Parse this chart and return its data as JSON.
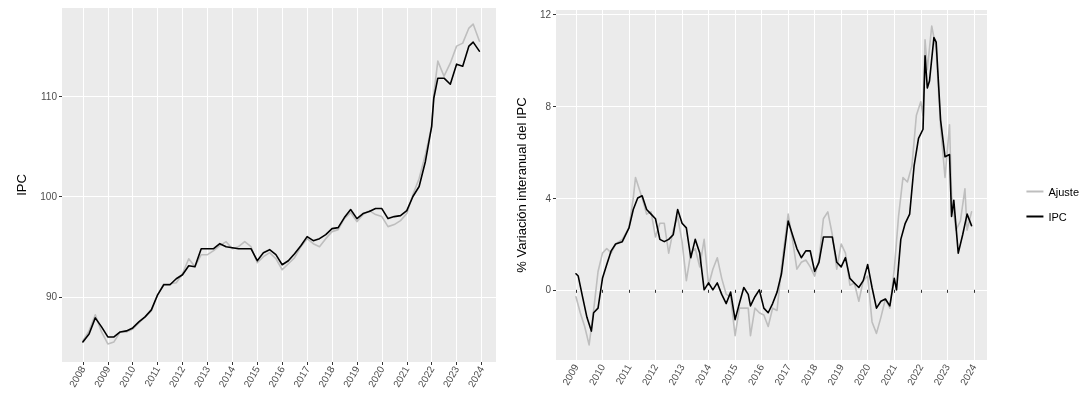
{
  "chart_data": [
    {
      "type": "line",
      "ylabel": "IPC",
      "xlim": [
        "2007-03",
        "2024-08"
      ],
      "ylim": [
        83.5,
        118.8
      ],
      "xticks": [
        "2008",
        "2009",
        "2010",
        "2011",
        "2012",
        "2013",
        "2014",
        "2015",
        "2016",
        "2017",
        "2018",
        "2019",
        "2020",
        "2021",
        "2022",
        "2023",
        "2024"
      ],
      "yticks": [
        90,
        100,
        110
      ],
      "grid": true,
      "marker": "none",
      "line_style": "solid",
      "series": [
        {
          "color": "#bebebe",
          "x": [
            "2008-01",
            "2008-04",
            "2008-07",
            "2008-10",
            "2009-01",
            "2009-04",
            "2009-07",
            "2009-10",
            "2010-01",
            "2010-04",
            "2010-07",
            "2010-10",
            "2011-01",
            "2011-04",
            "2011-07",
            "2011-10",
            "2012-01",
            "2012-04",
            "2012-07",
            "2012-10",
            "2013-01",
            "2013-04",
            "2013-07",
            "2013-10",
            "2014-01",
            "2014-04",
            "2014-07",
            "2014-10",
            "2015-01",
            "2015-04",
            "2015-07",
            "2015-10",
            "2016-01",
            "2016-04",
            "2016-07",
            "2016-10",
            "2017-01",
            "2017-04",
            "2017-07",
            "2017-10",
            "2018-01",
            "2018-04",
            "2018-07",
            "2018-10",
            "2019-01",
            "2019-04",
            "2019-07",
            "2019-10",
            "2020-01",
            "2020-04",
            "2020-07",
            "2020-10",
            "2021-01",
            "2021-04",
            "2021-07",
            "2021-10",
            "2022-01",
            "2022-02",
            "2022-04",
            "2022-07",
            "2022-10",
            "2023-01",
            "2023-04",
            "2023-07",
            "2023-09",
            "2023-12"
          ],
          "values": [
            85.6,
            86.6,
            88.2,
            86.5,
            85.3,
            85.5,
            86.5,
            86.5,
            86.8,
            87.4,
            88.0,
            88.6,
            90.2,
            91.3,
            91.3,
            91.4,
            92.3,
            93.8,
            93.0,
            94.2,
            94.2,
            94.6,
            95.1,
            95.5,
            94.8,
            95.0,
            95.5,
            95.0,
            93.4,
            94.0,
            94.4,
            93.8,
            92.7,
            93.3,
            93.9,
            95.0,
            95.8,
            95.3,
            95.0,
            95.8,
            96.5,
            96.7,
            97.8,
            98.4,
            97.5,
            98.2,
            98.6,
            98.2,
            98.0,
            97.0,
            97.2,
            97.6,
            98.3,
            100.2,
            101.8,
            104.2,
            107.0,
            110.2,
            113.5,
            112.0,
            113.3,
            115.0,
            115.3,
            116.8,
            117.2,
            115.5
          ]
        },
        {
          "color": "#000000",
          "x": [
            "2008-01",
            "2008-04",
            "2008-07",
            "2008-10",
            "2009-01",
            "2009-04",
            "2009-07",
            "2009-10",
            "2010-01",
            "2010-04",
            "2010-07",
            "2010-10",
            "2011-01",
            "2011-04",
            "2011-07",
            "2011-10",
            "2012-01",
            "2012-04",
            "2012-07",
            "2012-10",
            "2013-01",
            "2013-04",
            "2013-07",
            "2013-10",
            "2014-01",
            "2014-04",
            "2014-07",
            "2014-10",
            "2015-01",
            "2015-04",
            "2015-07",
            "2015-10",
            "2016-01",
            "2016-04",
            "2016-07",
            "2016-10",
            "2017-01",
            "2017-04",
            "2017-07",
            "2017-10",
            "2018-01",
            "2018-04",
            "2018-07",
            "2018-10",
            "2019-01",
            "2019-04",
            "2019-07",
            "2019-10",
            "2020-01",
            "2020-04",
            "2020-07",
            "2020-10",
            "2021-01",
            "2021-04",
            "2021-07",
            "2021-10",
            "2022-01",
            "2022-02",
            "2022-04",
            "2022-07",
            "2022-10",
            "2023-01",
            "2023-04",
            "2023-07",
            "2023-09",
            "2023-12"
          ],
          "values": [
            85.5,
            86.3,
            87.9,
            87.0,
            86.0,
            86.0,
            86.5,
            86.6,
            86.9,
            87.5,
            88.0,
            88.7,
            90.2,
            91.2,
            91.2,
            91.8,
            92.2,
            93.1,
            93.0,
            94.8,
            94.8,
            94.8,
            95.3,
            95.0,
            94.9,
            94.8,
            94.8,
            94.8,
            93.6,
            94.4,
            94.7,
            94.2,
            93.2,
            93.6,
            94.3,
            95.1,
            96.0,
            95.6,
            95.8,
            96.2,
            96.8,
            96.9,
            97.9,
            98.7,
            97.8,
            98.3,
            98.5,
            98.8,
            98.8,
            97.8,
            98.0,
            98.1,
            98.6,
            100.0,
            101.0,
            103.5,
            107.0,
            109.8,
            111.8,
            111.8,
            111.2,
            113.2,
            113.0,
            115.0,
            115.4,
            114.5
          ]
        }
      ]
    },
    {
      "type": "line",
      "ylabel": "% Variación interanual del IPC",
      "xlim": [
        "2008-04",
        "2024-07"
      ],
      "ylim": [
        -3.06,
        12.2
      ],
      "xticks": [
        "2009",
        "2010",
        "2011",
        "2012",
        "2013",
        "2014",
        "2015",
        "2016",
        "2017",
        "2018",
        "2019",
        "2020",
        "2021",
        "2022",
        "2023",
        "2024"
      ],
      "yticks": [
        0,
        4,
        8,
        12
      ],
      "grid": true,
      "legend": "right",
      "marker": "none",
      "line_style": "solid",
      "series": [
        {
          "name": "Ajuste",
          "color": "#bebebe",
          "x": [
            "2009-01",
            "2009-03",
            "2009-05",
            "2009-07",
            "2009-09",
            "2009-11",
            "2010-01",
            "2010-03",
            "2010-05",
            "2010-07",
            "2010-10",
            "2011-01",
            "2011-03",
            "2011-04",
            "2011-07",
            "2011-09",
            "2011-11",
            "2012-01",
            "2012-03",
            "2012-05",
            "2012-07",
            "2012-09",
            "2012-11",
            "2013-01",
            "2013-03",
            "2013-05",
            "2013-07",
            "2013-09",
            "2013-11",
            "2014-01",
            "2014-03",
            "2014-05",
            "2014-07",
            "2014-09",
            "2014-11",
            "2015-01",
            "2015-03",
            "2015-05",
            "2015-07",
            "2015-08",
            "2015-10",
            "2015-12",
            "2016-02",
            "2016-04",
            "2016-06",
            "2016-08",
            "2016-10",
            "2017-01",
            "2017-03",
            "2017-05",
            "2017-07",
            "2017-09",
            "2017-11",
            "2018-01",
            "2018-03",
            "2018-05",
            "2018-07",
            "2018-09",
            "2018-11",
            "2019-01",
            "2019-03",
            "2019-05",
            "2019-07",
            "2019-09",
            "2019-11",
            "2020-01",
            "2020-03",
            "2020-05",
            "2020-07",
            "2020-09",
            "2020-11",
            "2021-01",
            "2021-03",
            "2021-05",
            "2021-07",
            "2021-09",
            "2021-11",
            "2022-01",
            "2022-02",
            "2022-03",
            "2022-04",
            "2022-06",
            "2022-08",
            "2022-10",
            "2022-12",
            "2023-02",
            "2023-03",
            "2023-05",
            "2023-07",
            "2023-09",
            "2023-10",
            "2023-12"
          ],
          "values": [
            -0.3,
            -1.0,
            -1.6,
            -2.4,
            -0.9,
            0.8,
            1.6,
            1.8,
            1.6,
            2.0,
            2.2,
            2.7,
            4.0,
            4.9,
            4.0,
            3.3,
            3.4,
            2.3,
            2.9,
            2.9,
            1.6,
            2.6,
            3.2,
            2.1,
            0.4,
            1.6,
            1.8,
            1.0,
            2.2,
            0.2,
            0.9,
            1.4,
            0.5,
            -0.2,
            -0.3,
            -2.0,
            -0.8,
            -0.8,
            -0.8,
            -2.0,
            -0.8,
            -1.0,
            -1.1,
            -1.6,
            -0.8,
            -0.9,
            1.0,
            3.3,
            2.2,
            0.9,
            1.2,
            1.3,
            1.0,
            0.6,
            1.3,
            3.1,
            3.4,
            2.4,
            0.9,
            2.0,
            1.6,
            0.2,
            0.3,
            -0.5,
            0.4,
            0.6,
            -1.4,
            -1.9,
            -1.2,
            -0.4,
            -0.8,
            0.9,
            3.2,
            4.9,
            4.7,
            5.4,
            7.6,
            8.2,
            7.6,
            10.9,
            9.6,
            11.5,
            10.5,
            7.1,
            4.9,
            7.2,
            4.1,
            2.6,
            3.0,
            4.4,
            2.6,
            3.4
          ]
        },
        {
          "name": "IPC",
          "color": "#000000",
          "x": [
            "2009-01",
            "2009-02",
            "2009-04",
            "2009-06",
            "2009-08",
            "2009-09",
            "2009-11",
            "2010-01",
            "2010-03",
            "2010-05",
            "2010-07",
            "2010-10",
            "2011-01",
            "2011-03",
            "2011-05",
            "2011-07",
            "2011-09",
            "2011-11",
            "2012-01",
            "2012-03",
            "2012-05",
            "2012-07",
            "2012-09",
            "2012-11",
            "2013-01",
            "2013-03",
            "2013-05",
            "2013-07",
            "2013-09",
            "2013-11",
            "2014-01",
            "2014-03",
            "2014-05",
            "2014-07",
            "2014-09",
            "2014-11",
            "2015-01",
            "2015-03",
            "2015-05",
            "2015-07",
            "2015-08",
            "2015-10",
            "2015-12",
            "2016-02",
            "2016-04",
            "2016-06",
            "2016-08",
            "2016-10",
            "2017-01",
            "2017-03",
            "2017-05",
            "2017-07",
            "2017-09",
            "2017-11",
            "2018-01",
            "2018-03",
            "2018-05",
            "2018-07",
            "2018-09",
            "2018-11",
            "2019-01",
            "2019-03",
            "2019-05",
            "2019-07",
            "2019-09",
            "2019-11",
            "2020-01",
            "2020-03",
            "2020-05",
            "2020-07",
            "2020-09",
            "2020-11",
            "2021-01",
            "2021-02",
            "2021-04",
            "2021-06",
            "2021-08",
            "2021-10",
            "2021-12",
            "2022-02",
            "2022-03",
            "2022-04",
            "2022-05",
            "2022-07",
            "2022-08",
            "2022-10",
            "2022-12",
            "2023-02",
            "2023-03",
            "2023-04",
            "2023-06",
            "2023-08",
            "2023-10",
            "2023-12"
          ],
          "values": [
            0.7,
            0.6,
            -0.3,
            -1.2,
            -1.8,
            -1.0,
            -0.8,
            0.5,
            1.1,
            1.7,
            2.0,
            2.1,
            2.7,
            3.5,
            4.0,
            4.1,
            3.5,
            3.3,
            3.1,
            2.2,
            2.1,
            2.2,
            2.4,
            3.5,
            2.9,
            2.7,
            1.4,
            2.2,
            1.6,
            0.0,
            0.3,
            0.0,
            0.3,
            -0.2,
            -0.6,
            -0.1,
            -1.3,
            -0.6,
            0.1,
            -0.2,
            -0.7,
            -0.3,
            0.0,
            -0.8,
            -1.0,
            -0.6,
            -0.1,
            0.7,
            3.0,
            2.4,
            1.8,
            1.4,
            1.7,
            1.7,
            0.8,
            1.2,
            2.3,
            2.3,
            2.3,
            1.2,
            1.0,
            1.4,
            0.5,
            0.3,
            0.1,
            0.4,
            1.1,
            0.1,
            -0.8,
            -0.5,
            -0.4,
            -0.7,
            0.5,
            0.0,
            2.2,
            2.9,
            3.3,
            5.4,
            6.6,
            7.0,
            10.2,
            8.8,
            9.1,
            11.0,
            10.8,
            7.4,
            5.8,
            5.9,
            3.2,
            3.9,
            1.6,
            2.4,
            3.3,
            2.8
          ]
        }
      ]
    }
  ]
}
